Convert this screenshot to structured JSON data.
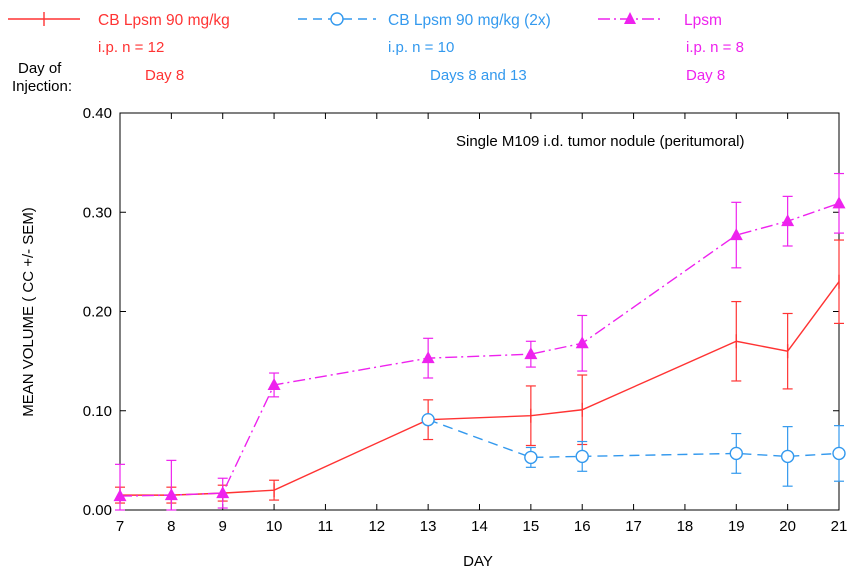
{
  "chart_data": {
    "type": "line",
    "annotation": "Single  M109  i.d.  tumor  nodule  (peritumoral)",
    "xlabel": "DAY",
    "ylabel": "MEAN VOLUME ( CC +/- SEM)",
    "xticks": [
      7,
      8,
      9,
      10,
      11,
      12,
      13,
      14,
      15,
      16,
      17,
      18,
      19,
      20,
      21
    ],
    "xlim": [
      7,
      21
    ],
    "yticks": [
      "0.00",
      "0.10",
      "0.20",
      "0.30",
      "0.40"
    ],
    "ylim": [
      0,
      0.4
    ],
    "legend_heading": "Day of\nInjection:",
    "series": [
      {
        "name": "CB Lpsm 90 mg/kg",
        "line1": "i.p. n = 12",
        "line2": "Day 8",
        "color": "#ff3333",
        "marker": "tick",
        "dash": "solid",
        "x": [
          7,
          8,
          9,
          10,
          13,
          15,
          16,
          19,
          20,
          21
        ],
        "y": [
          0.015,
          0.015,
          0.017,
          0.02,
          0.091,
          0.095,
          0.101,
          0.17,
          0.16,
          0.23
        ],
        "err": [
          0.008,
          0.008,
          0.008,
          0.01,
          0.02,
          0.03,
          0.035,
          0.04,
          0.038,
          0.042
        ]
      },
      {
        "name": "CB Lpsm 90 mg/kg (2x)",
        "line1": "i.p. n = 10",
        "line2": "Days 8 and 13",
        "color": "#3399ee",
        "marker": "circle",
        "dash": "dash",
        "x": [
          13,
          15,
          16,
          19,
          20,
          21
        ],
        "y": [
          0.091,
          0.053,
          0.054,
          0.057,
          0.054,
          0.057
        ],
        "err": [
          0.0,
          0.01,
          0.015,
          0.02,
          0.03,
          0.028
        ]
      },
      {
        "name": "Lpsm",
        "line1": "i.p. n = 8",
        "line2": "Day 8",
        "color": "#ee22ee",
        "marker": "triangle",
        "dash": "dashdot",
        "x": [
          7,
          8,
          9,
          10,
          13,
          15,
          16,
          19,
          20,
          21
        ],
        "y": [
          0.014,
          0.015,
          0.017,
          0.126,
          0.153,
          0.157,
          0.168,
          0.277,
          0.291,
          0.309
        ],
        "err": [
          0.032,
          0.035,
          0.015,
          0.012,
          0.02,
          0.013,
          0.028,
          0.033,
          0.025,
          0.03
        ]
      }
    ]
  }
}
